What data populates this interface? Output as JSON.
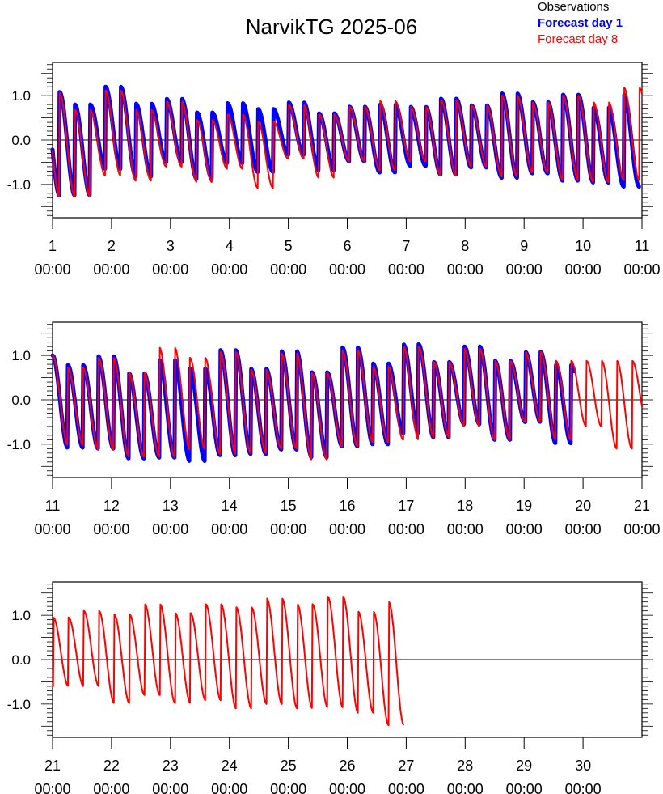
{
  "chart_data": {
    "type": "line",
    "title": "NarvikTG 2025-06",
    "legend": {
      "placement": "top-right",
      "entries": [
        {
          "name": "Observations",
          "color": "#000000"
        },
        {
          "name": "Forecast day 1",
          "color": "#0000ff"
        },
        {
          "name": "Forecast day 8",
          "color": "#ff0000"
        }
      ]
    },
    "ylim": [
      -1.75,
      1.75
    ],
    "yticks": [
      "1.0",
      "0.0",
      "-1.0"
    ],
    "y_values_ticks": [
      1.0,
      0.0,
      -1.0
    ],
    "tidal_period_days": 0.5175,
    "panels": [
      {
        "xlim": [
          1,
          11
        ],
        "x_day_labels": [
          "1",
          "2",
          "3",
          "4",
          "5",
          "6",
          "7",
          "8",
          "9",
          "10",
          "11"
        ],
        "x_time_label": "00:00",
        "series": [
          {
            "name": "Forecast day 1",
            "x_range": [
              1,
              10.95
            ],
            "phase_day": 1.12,
            "high_water": [
              1.08,
              0.8,
              1.2,
              0.82,
              0.93,
              0.62,
              0.83,
              0.7,
              0.85,
              0.6,
              0.75,
              0.8,
              0.75,
              0.93,
              0.78,
              1.05,
              0.86,
              1.02,
              0.73,
              1.02
            ],
            "low_water": [
              -1.25,
              -0.65,
              -0.82,
              -0.5,
              -0.88,
              -0.52,
              -0.72,
              -0.33,
              -0.68,
              -0.48,
              -0.73,
              -0.58,
              -0.78,
              -0.62,
              -0.85,
              -0.75,
              -0.92,
              -0.96,
              -1.05,
              -0.55
            ]
          },
          {
            "name": "Forecast day 8",
            "x_range": [
              1,
              11
            ],
            "phase_day": 1.12,
            "high_water": [
              1.06,
              0.68,
              1.12,
              0.68,
              0.88,
              0.45,
              0.58,
              0.42,
              0.8,
              0.58,
              0.75,
              0.88,
              0.75,
              0.9,
              0.78,
              1.0,
              0.85,
              1.0,
              0.85,
              1.18
            ],
            "low_water": [
              -1.28,
              -0.8,
              -0.92,
              -0.6,
              -0.95,
              -0.65,
              -1.08,
              -0.42,
              -0.85,
              -0.48,
              -0.68,
              -0.48,
              -0.8,
              -0.6,
              -0.82,
              -0.73,
              -0.9,
              -0.95,
              -0.9,
              -0.5
            ]
          }
        ]
      },
      {
        "xlim": [
          11,
          21
        ],
        "x_day_labels": [
          "11",
          "12",
          "13",
          "14",
          "15",
          "16",
          "17",
          "18",
          "19",
          "20",
          "21"
        ],
        "x_time_label": "00:00",
        "series": [
          {
            "name": "Forecast day 1",
            "x_range": [
              11,
              19.85
            ],
            "phase_day": 11.0,
            "high_water": [
              1.0,
              0.78,
              0.98,
              0.6,
              0.9,
              0.7,
              1.12,
              0.7,
              1.1,
              0.62,
              1.18,
              0.82,
              1.25,
              0.85,
              1.2,
              0.88,
              1.08,
              0.78
            ],
            "low_water": [
              -1.08,
              -1.1,
              -1.32,
              -1.3,
              -1.38,
              -1.25,
              -1.22,
              -1.12,
              -1.3,
              -1.05,
              -1.0,
              -0.75,
              -0.85,
              -0.55,
              -0.9,
              -0.5,
              -0.98,
              -0.6
            ]
          },
          {
            "name": "Forecast day 8",
            "x_range": [
              11,
              21
            ],
            "phase_day": 11.0,
            "high_water": [
              1.0,
              0.72,
              0.95,
              0.62,
              1.18,
              0.95,
              1.08,
              0.68,
              1.05,
              0.6,
              1.12,
              0.75,
              1.2,
              0.85,
              1.15,
              0.88,
              1.08,
              0.88,
              0.88,
              0.88
            ],
            "low_water": [
              -1.02,
              -1.12,
              -1.28,
              -1.28,
              -1.12,
              -1.22,
              -1.2,
              -1.1,
              -1.35,
              -1.05,
              -0.95,
              -0.9,
              -0.85,
              -0.6,
              -0.9,
              -0.5,
              -0.9,
              -0.6,
              -1.1,
              -0.55
            ]
          }
        ]
      },
      {
        "xlim": [
          21,
          31
        ],
        "x_day_labels": [
          "21",
          "22",
          "23",
          "24",
          "25",
          "26",
          "27",
          "28",
          "29",
          "30"
        ],
        "x_time_label": "00:00",
        "series": [
          {
            "name": "Forecast day 8",
            "x_range": [
              21,
              26.95
            ],
            "phase_day": 21.27,
            "high_water": [
              0.95,
              1.1,
              1.02,
              1.25,
              1.05,
              1.25,
              1.18,
              1.38,
              1.25,
              1.42,
              1.08,
              1.3
            ],
            "low_water": [
              -0.6,
              -0.98,
              -0.8,
              -0.98,
              -0.92,
              -1.1,
              -1.0,
              -1.1,
              -1.08,
              -1.2,
              -1.48,
              -1.25
            ]
          }
        ]
      }
    ]
  }
}
